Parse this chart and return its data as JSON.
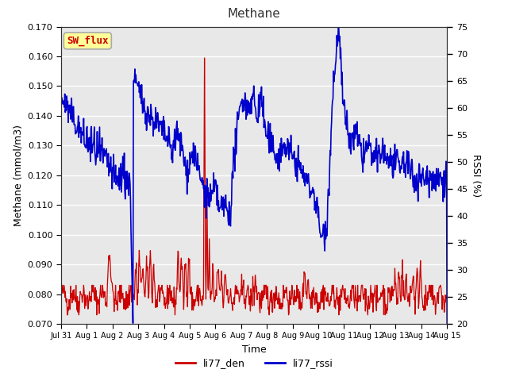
{
  "title": "Methane",
  "ylabel_left": "Methane (mmol/m3)",
  "ylabel_right": "RSSI (%)",
  "xlabel": "Time",
  "ylim_left": [
    0.07,
    0.17
  ],
  "ylim_right": [
    20,
    75
  ],
  "yticks_left": [
    0.07,
    0.08,
    0.09,
    0.1,
    0.11,
    0.12,
    0.13,
    0.14,
    0.15,
    0.16,
    0.17
  ],
  "yticks_right": [
    20,
    25,
    30,
    35,
    40,
    45,
    50,
    55,
    60,
    65,
    70,
    75
  ],
  "xtick_labels": [
    "Jul 31",
    "Aug 1",
    "Aug 2",
    "Aug 3",
    "Aug 4",
    "Aug 5",
    "Aug 6",
    "Aug 7",
    "Aug 8",
    "Aug 9",
    "Aug 10",
    "Aug 11",
    "Aug 12",
    "Aug 13",
    "Aug 14",
    "Aug 15"
  ],
  "color_den": "#cc0000",
  "color_rssi": "#0000cc",
  "fig_bg_color": "#ffffff",
  "plot_bg_color": "#e8e8e8",
  "grid_color": "#ffffff",
  "legend_labels": [
    "li77_den",
    "li77_rssi"
  ],
  "sw_flux_label": "SW_flux",
  "sw_flux_bg": "#ffff99",
  "sw_flux_border": "#aaaaaa",
  "sw_flux_text_color": "#cc0000",
  "title_fontsize": 11,
  "axis_fontsize": 9,
  "tick_fontsize": 8
}
